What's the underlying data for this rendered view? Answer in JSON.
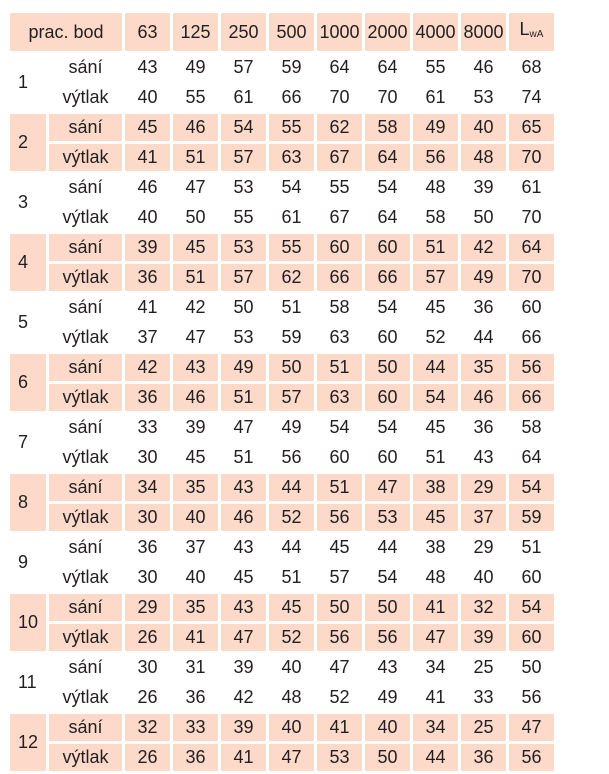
{
  "header": {
    "label": "prac. bod",
    "frequencies": [
      "63",
      "125",
      "250",
      "500",
      "1000",
      "2000",
      "4000",
      "8000"
    ],
    "lwa_main": "L",
    "lwa_sub": "wA"
  },
  "row_labels": {
    "intake": "sání",
    "discharge": "výtlak"
  },
  "colors": {
    "shade": "#fcd9c9",
    "text": "#231f20"
  },
  "points": [
    {
      "id": "1",
      "intake": [
        43,
        49,
        57,
        59,
        64,
        64,
        55,
        46,
        68
      ],
      "discharge": [
        40,
        55,
        61,
        66,
        70,
        70,
        61,
        53,
        74
      ]
    },
    {
      "id": "2",
      "intake": [
        45,
        46,
        54,
        55,
        62,
        58,
        49,
        40,
        65
      ],
      "discharge": [
        41,
        51,
        57,
        63,
        67,
        64,
        56,
        48,
        70
      ]
    },
    {
      "id": "3",
      "intake": [
        46,
        47,
        53,
        54,
        55,
        54,
        48,
        39,
        61
      ],
      "discharge": [
        40,
        50,
        55,
        61,
        67,
        64,
        58,
        50,
        70
      ]
    },
    {
      "id": "4",
      "intake": [
        39,
        45,
        53,
        55,
        60,
        60,
        51,
        42,
        64
      ],
      "discharge": [
        36,
        51,
        57,
        62,
        66,
        66,
        57,
        49,
        70
      ]
    },
    {
      "id": "5",
      "intake": [
        41,
        42,
        50,
        51,
        58,
        54,
        45,
        36,
        60
      ],
      "discharge": [
        37,
        47,
        53,
        59,
        63,
        60,
        52,
        44,
        66
      ]
    },
    {
      "id": "6",
      "intake": [
        42,
        43,
        49,
        50,
        51,
        50,
        44,
        35,
        56
      ],
      "discharge": [
        36,
        46,
        51,
        57,
        63,
        60,
        54,
        46,
        66
      ]
    },
    {
      "id": "7",
      "intake": [
        33,
        39,
        47,
        49,
        54,
        54,
        45,
        36,
        58
      ],
      "discharge": [
        30,
        45,
        51,
        56,
        60,
        60,
        51,
        43,
        64
      ]
    },
    {
      "id": "8",
      "intake": [
        34,
        35,
        43,
        44,
        51,
        47,
        38,
        29,
        54
      ],
      "discharge": [
        30,
        40,
        46,
        52,
        56,
        53,
        45,
        37,
        59
      ]
    },
    {
      "id": "9",
      "intake": [
        36,
        37,
        43,
        44,
        45,
        44,
        38,
        29,
        51
      ],
      "discharge": [
        30,
        40,
        45,
        51,
        57,
        54,
        48,
        40,
        60
      ]
    },
    {
      "id": "10",
      "intake": [
        29,
        35,
        43,
        45,
        50,
        50,
        41,
        32,
        54
      ],
      "discharge": [
        26,
        41,
        47,
        52,
        56,
        56,
        47,
        39,
        60
      ]
    },
    {
      "id": "11",
      "intake": [
        30,
        31,
        39,
        40,
        47,
        43,
        34,
        25,
        50
      ],
      "discharge": [
        26,
        36,
        42,
        48,
        52,
        49,
        41,
        33,
        56
      ]
    },
    {
      "id": "12",
      "intake": [
        32,
        33,
        39,
        40,
        41,
        40,
        34,
        25,
        47
      ],
      "discharge": [
        26,
        36,
        41,
        47,
        53,
        50,
        44,
        36,
        56
      ]
    }
  ]
}
